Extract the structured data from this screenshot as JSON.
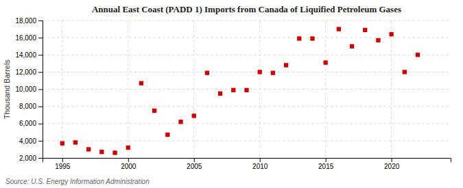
{
  "chart_data": {
    "type": "scatter",
    "title": "Annual East Coast (PADD 1) Imports from Canada of Liquified Petroleum Gases",
    "ylabel": "Thousand Barrels",
    "source": "Source: U.S. Energy Information Administration",
    "x": [
      1995,
      1996,
      1997,
      1998,
      1999,
      2000,
      2001,
      2002,
      2003,
      2004,
      2005,
      2006,
      2007,
      2008,
      2009,
      2010,
      2011,
      2012,
      2013,
      2014,
      2015,
      2016,
      2017,
      2018,
      2019,
      2020,
      2021,
      2022
    ],
    "values": [
      3700,
      3800,
      3000,
      2700,
      2600,
      3200,
      10700,
      7500,
      4700,
      6200,
      6900,
      11900,
      9500,
      9900,
      9900,
      12000,
      11900,
      12800,
      15900,
      15900,
      13100,
      17000,
      15000,
      16900,
      15700,
      16400,
      12000,
      14000
    ],
    "color": "#cc0000",
    "marker": "square",
    "xlim": [
      1993.5,
      2024.5
    ],
    "ylim": [
      2000,
      18000
    ],
    "xticks": [
      1995,
      2000,
      2005,
      2010,
      2015,
      2020
    ],
    "yticks": [
      {
        "value": 2000,
        "label": "2,000"
      },
      {
        "value": 4000,
        "label": "4,000"
      },
      {
        "value": 6000,
        "label": "6,000"
      },
      {
        "value": 8000,
        "label": "8,000"
      },
      {
        "value": 10000,
        "label": "10,000"
      },
      {
        "value": 12000,
        "label": "12,000"
      },
      {
        "value": 14000,
        "label": "14,000"
      },
      {
        "value": 16000,
        "label": "16,000"
      },
      {
        "value": 18000,
        "label": "18,000"
      }
    ],
    "grid": true
  }
}
